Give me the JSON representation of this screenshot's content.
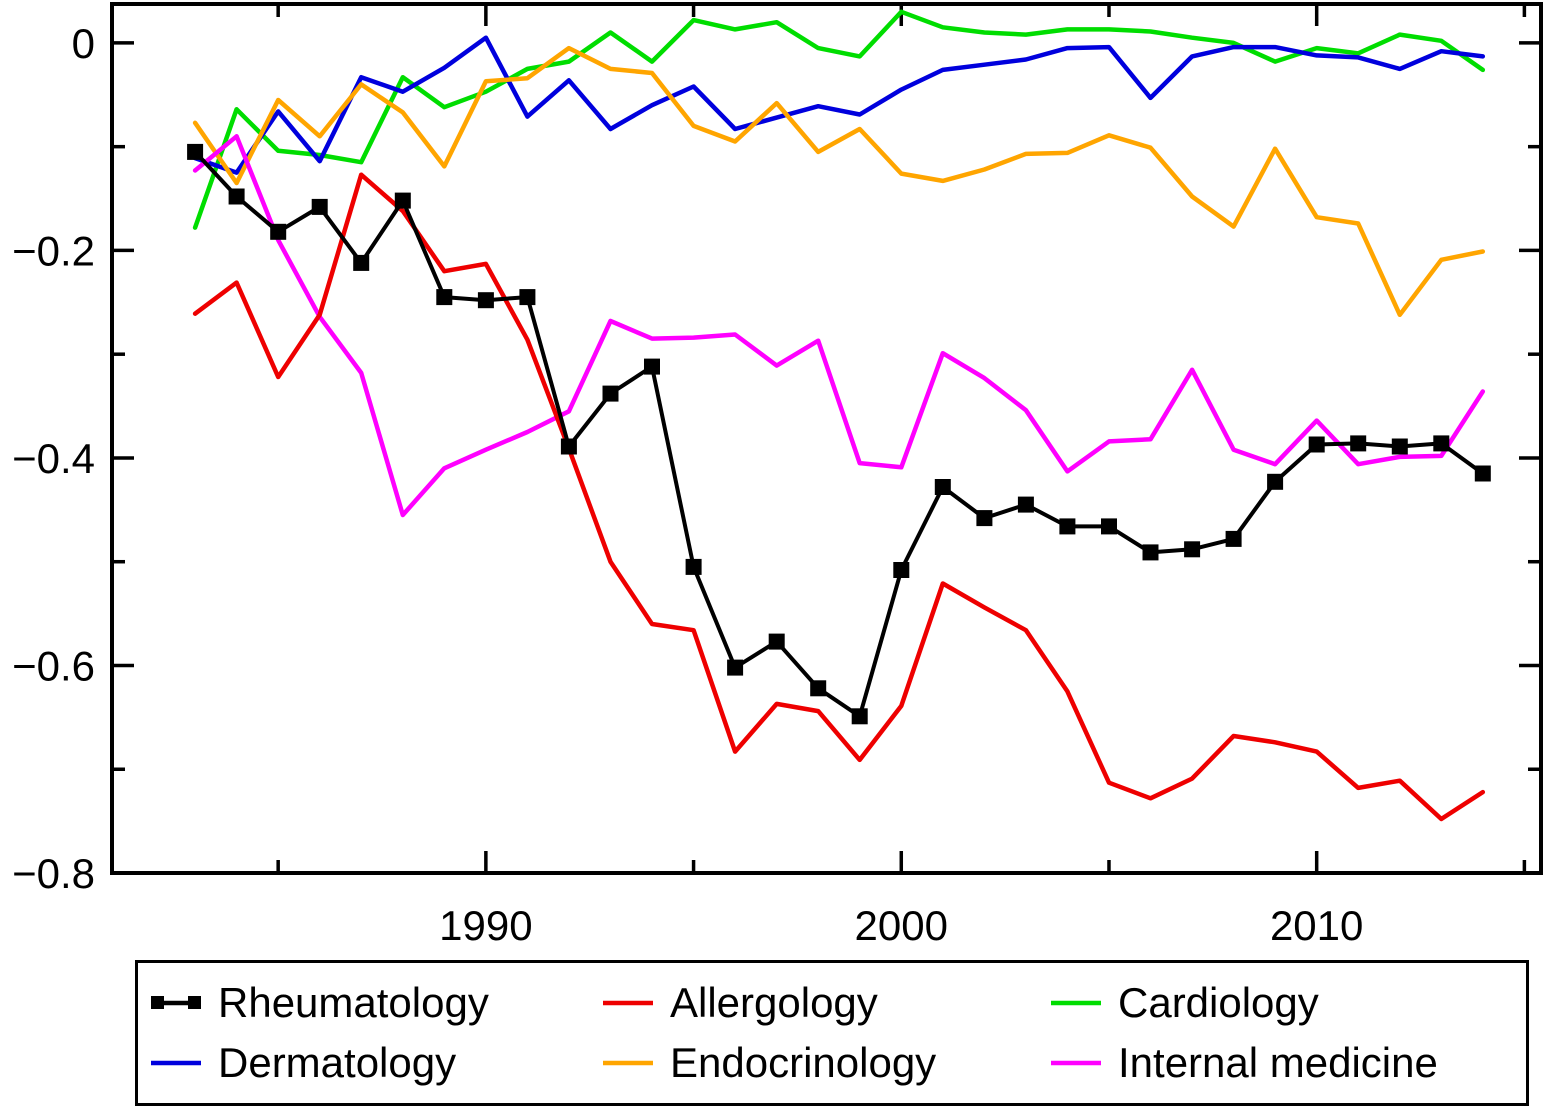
{
  "chart_data": {
    "type": "line",
    "title": "",
    "xlabel": "",
    "ylabel": "",
    "x": [
      1983,
      1984,
      1985,
      1986,
      1987,
      1988,
      1989,
      1990,
      1991,
      1992,
      1993,
      1994,
      1995,
      1996,
      1997,
      1998,
      1999,
      2000,
      2001,
      2002,
      2003,
      2004,
      2005,
      2006,
      2007,
      2008,
      2009,
      2010,
      2011,
      2012,
      2013,
      2014
    ],
    "series": [
      {
        "name": "Rheumatology",
        "color": "#000000",
        "marker": "square",
        "values": [
          -0.105,
          -0.148,
          -0.182,
          -0.158,
          -0.212,
          -0.152,
          -0.245,
          -0.248,
          -0.245,
          -0.389,
          -0.338,
          -0.312,
          -0.505,
          -0.602,
          -0.577,
          -0.622,
          -0.649,
          -0.508,
          -0.428,
          -0.458,
          -0.445,
          -0.466,
          -0.466,
          -0.491,
          -0.488,
          -0.478,
          -0.423,
          -0.387,
          -0.386,
          -0.389,
          -0.386,
          -0.415
        ]
      },
      {
        "name": "Allergology",
        "color": "#ee0000",
        "marker": "none",
        "values": [
          -0.261,
          -0.231,
          -0.322,
          -0.262,
          -0.127,
          -0.162,
          -0.22,
          -0.213,
          -0.286,
          -0.391,
          -0.5,
          -0.56,
          -0.566,
          -0.683,
          -0.637,
          -0.644,
          -0.691,
          -0.639,
          -0.521,
          -0.544,
          -0.566,
          -0.625,
          -0.713,
          -0.728,
          -0.709,
          -0.668,
          -0.674,
          -0.683,
          -0.718,
          -0.711,
          -0.748,
          -0.722
        ]
      },
      {
        "name": "Cardiology",
        "color": "#00dd00",
        "marker": "none",
        "values": [
          -0.178,
          -0.064,
          -0.104,
          -0.108,
          -0.115,
          -0.033,
          -0.062,
          -0.047,
          -0.025,
          -0.018,
          0.01,
          -0.018,
          0.022,
          0.013,
          0.02,
          -0.005,
          -0.013,
          0.03,
          0.015,
          0.01,
          0.008,
          0.013,
          0.013,
          0.011,
          0.005,
          0.0,
          -0.018,
          -0.005,
          -0.01,
          0.008,
          0.002,
          -0.026
        ]
      },
      {
        "name": "Dermatology",
        "color": "#0000dd",
        "marker": "none",
        "values": [
          -0.111,
          -0.125,
          -0.066,
          -0.114,
          -0.033,
          -0.047,
          -0.024,
          0.005,
          -0.071,
          -0.036,
          -0.083,
          -0.06,
          -0.042,
          -0.083,
          -0.072,
          -0.061,
          -0.069,
          -0.045,
          -0.026,
          -0.021,
          -0.016,
          -0.005,
          -0.004,
          -0.053,
          -0.013,
          -0.004,
          -0.004,
          -0.012,
          -0.014,
          -0.025,
          -0.008,
          -0.013
        ]
      },
      {
        "name": "Endocrinology",
        "color": "#ffa500",
        "marker": "none",
        "values": [
          -0.077,
          -0.135,
          -0.055,
          -0.09,
          -0.04,
          -0.067,
          -0.119,
          -0.037,
          -0.034,
          -0.005,
          -0.025,
          -0.029,
          -0.08,
          -0.095,
          -0.058,
          -0.105,
          -0.083,
          -0.126,
          -0.133,
          -0.122,
          -0.107,
          -0.106,
          -0.089,
          -0.101,
          -0.148,
          -0.177,
          -0.102,
          -0.168,
          -0.174,
          -0.262,
          -0.209,
          -0.201
        ]
      },
      {
        "name": "Internal medicine",
        "color": "#ff00ff",
        "marker": "none",
        "values": [
          -0.123,
          -0.09,
          -0.19,
          -0.264,
          -0.318,
          -0.455,
          -0.41,
          -0.392,
          -0.375,
          -0.355,
          -0.268,
          -0.285,
          -0.284,
          -0.281,
          -0.311,
          -0.287,
          -0.405,
          -0.409,
          -0.299,
          -0.323,
          -0.354,
          -0.413,
          -0.384,
          -0.382,
          -0.315,
          -0.392,
          -0.406,
          -0.364,
          -0.406,
          -0.399,
          -0.398,
          -0.336
        ]
      }
    ],
    "xlim": [
      1981,
      2015.4
    ],
    "ylim": [
      -0.8,
      0.0375
    ],
    "x_major_ticks": [
      1990,
      2000,
      2010
    ],
    "x_minor_ticks": [
      1985,
      1995,
      2005,
      2015
    ],
    "x_tick_labels": [
      "1990",
      "2000",
      "2010"
    ],
    "y_major_ticks": [
      0,
      -0.2,
      -0.4,
      -0.6,
      -0.8
    ],
    "y_minor_ticks": [
      -0.1,
      -0.3,
      -0.5,
      -0.7
    ],
    "y_tick_labels": [
      "0",
      "−0.2",
      "−0.4",
      "−0.6",
      "−0.8"
    ],
    "grid": "off",
    "legend_position": "bottom"
  }
}
